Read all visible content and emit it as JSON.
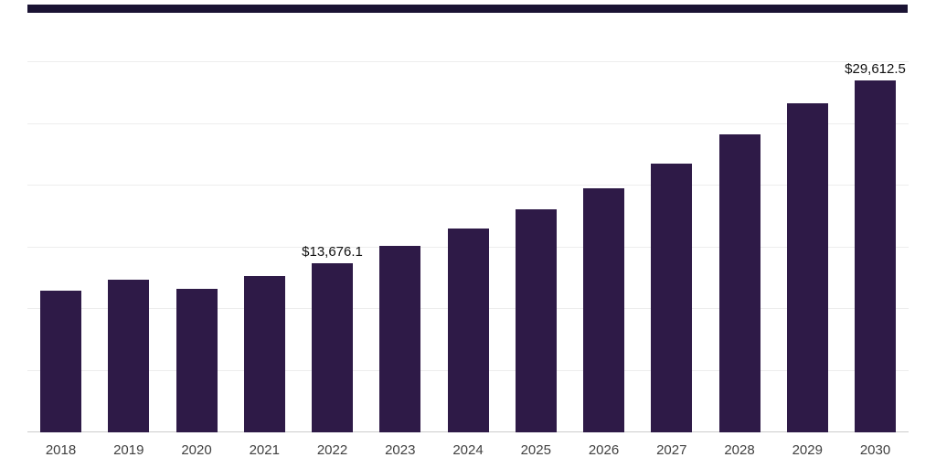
{
  "accent_bar_color": "#1a1333",
  "chart_data": {
    "type": "bar",
    "title": "",
    "xlabel": "",
    "ylabel": "",
    "categories": [
      "2018",
      "2019",
      "2020",
      "2021",
      "2022",
      "2023",
      "2024",
      "2025",
      "2026",
      "2027",
      "2028",
      "2029",
      "2030"
    ],
    "values": [
      11450,
      12400,
      11650,
      12700,
      13676.1,
      15100,
      16550,
      18050,
      19800,
      21800,
      24150,
      26700,
      29612.5
    ],
    "ylim": [
      0,
      30000
    ],
    "gridline_step": 5000,
    "grid": "horizontal",
    "legend": "none",
    "bar_color": "#2E1A47",
    "gridline_color": "#ededed",
    "axis_line_color": "#cccccc",
    "annotations": [
      {
        "category": "2022",
        "text": "$13,676.1"
      },
      {
        "category": "2030",
        "text": "$29,612.5"
      }
    ]
  }
}
